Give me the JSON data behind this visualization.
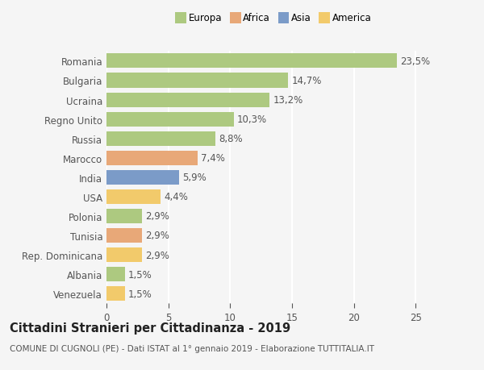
{
  "countries": [
    "Venezuela",
    "Albania",
    "Rep. Dominicana",
    "Tunisia",
    "Polonia",
    "USA",
    "India",
    "Marocco",
    "Russia",
    "Regno Unito",
    "Ucraina",
    "Bulgaria",
    "Romania"
  ],
  "values": [
    1.5,
    1.5,
    2.9,
    2.9,
    2.9,
    4.4,
    5.9,
    7.4,
    8.8,
    10.3,
    13.2,
    14.7,
    23.5
  ],
  "labels": [
    "1,5%",
    "1,5%",
    "2,9%",
    "2,9%",
    "2,9%",
    "4,4%",
    "5,9%",
    "7,4%",
    "8,8%",
    "10,3%",
    "13,2%",
    "14,7%",
    "23,5%"
  ],
  "colors": [
    "#f2ca6b",
    "#adc980",
    "#f2ca6b",
    "#e8a878",
    "#adc980",
    "#f2ca6b",
    "#7b9bc8",
    "#e8a878",
    "#adc980",
    "#adc980",
    "#adc980",
    "#adc980",
    "#adc980"
  ],
  "legend_labels": [
    "Europa",
    "Africa",
    "Asia",
    "America"
  ],
  "legend_colors": [
    "#adc980",
    "#e8a878",
    "#7b9bc8",
    "#f2ca6b"
  ],
  "xlim": [
    0,
    27
  ],
  "xticks": [
    0,
    5,
    10,
    15,
    20,
    25
  ],
  "title": "Cittadini Stranieri per Cittadinanza - 2019",
  "subtitle": "COMUNE DI CUGNOLI (PE) - Dati ISTAT al 1° gennaio 2019 - Elaborazione TUTTITALIA.IT",
  "bar_height": 0.75,
  "bg_color": "#f5f5f5",
  "grid_color": "#ffffff",
  "text_color": "#555555",
  "label_fontsize": 8.5,
  "ytick_fontsize": 8.5,
  "xtick_fontsize": 8.5,
  "title_fontsize": 10.5,
  "subtitle_fontsize": 7.5
}
